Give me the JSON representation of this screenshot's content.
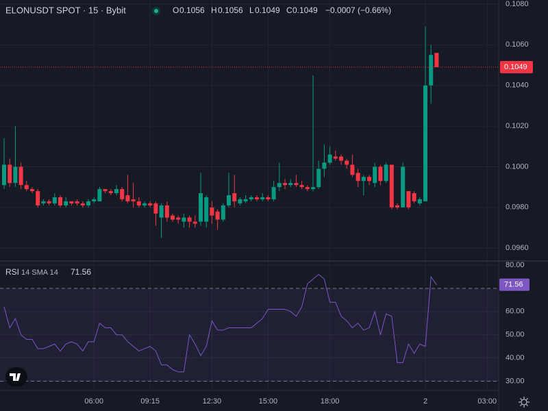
{
  "chart_data": [
    {
      "type": "candlestick",
      "title": "ELONUSDT SPOT · 15 · Bybit",
      "ohlc_labels": [
        "O",
        "H",
        "L",
        "C"
      ],
      "change": "−0.0007 (−0.66%)",
      "categories": [
        null,
        null,
        null,
        null,
        null,
        null,
        null,
        null,
        null,
        null,
        null,
        null,
        null,
        null,
        null,
        null,
        "06:00",
        null,
        null,
        null,
        null,
        null,
        null,
        null,
        null,
        null,
        "09:15",
        null,
        null,
        null,
        null,
        null,
        null,
        null,
        null,
        null,
        null,
        "12:30",
        null,
        null,
        null,
        null,
        null,
        null,
        null,
        null,
        null,
        "15:00",
        null,
        null,
        null,
        null,
        null,
        null,
        null,
        null,
        null,
        null,
        "18:00",
        null,
        null,
        null,
        null,
        null,
        null,
        null,
        null,
        null,
        null,
        null,
        null,
        null,
        null,
        null,
        null,
        "2",
        null,
        null,
        null,
        null,
        null,
        null,
        null,
        null,
        null,
        null,
        "03:00"
      ],
      "open": [
        0.0991,
        0.1001,
        0.0992,
        0.1,
        0.0991,
        0.0989,
        0.0988,
        0.0982,
        0.0983,
        0.0982,
        0.0985,
        0.0981,
        0.0983,
        0.0983,
        0.0982,
        0.0981,
        0.0983,
        0.0983,
        0.0989,
        0.0988,
        0.0987,
        0.0989,
        0.0986,
        0.0984,
        0.0983,
        0.0981,
        0.0982,
        0.0982,
        0.0975,
        0.0981,
        0.0976,
        0.0975,
        0.0973,
        0.0975,
        0.0973,
        0.0973,
        0.0973,
        0.098,
        0.0978,
        0.0974,
        0.0981,
        0.0987,
        0.0982,
        0.0983,
        0.0984,
        0.0985,
        0.0984,
        0.0985,
        0.0984,
        0.099,
        0.0992,
        0.0991,
        0.0992,
        0.0991,
        0.099,
        0.0989,
        0.099,
        0.0999,
        0.1002,
        0.1005,
        0.1005,
        0.1003,
        0.1001,
        0.0997,
        0.0993,
        0.0995,
        0.0992,
        0.1,
        0.0993,
        0.1001,
        0.0981,
        0.098,
        0.0988,
        0.0987,
        0.0982,
        0.0983,
        0.104,
        0.1056,
        null,
        null,
        null,
        null,
        null,
        null,
        null,
        null,
        null
      ],
      "high": [
        0.1014,
        0.1004,
        0.102,
        0.1002,
        0.0993,
        0.099,
        0.0989,
        0.0984,
        0.0984,
        0.0987,
        0.0986,
        0.0985,
        0.0983,
        0.0984,
        0.0983,
        0.0984,
        0.0985,
        0.099,
        0.0989,
        0.0989,
        0.0991,
        0.099,
        0.0996,
        0.0992,
        0.0985,
        0.0983,
        0.0983,
        0.0983,
        0.0982,
        0.0983,
        0.0977,
        0.0976,
        0.0977,
        0.0976,
        0.0976,
        0.0997,
        0.0986,
        0.0983,
        0.0979,
        0.0982,
        0.0997,
        0.0996,
        0.0985,
        0.0986,
        0.0986,
        0.0986,
        0.0987,
        0.0986,
        0.0993,
        0.1002,
        0.0994,
        0.0994,
        0.0996,
        0.0993,
        0.0991,
        0.1045,
        0.1003,
        0.1011,
        0.101,
        0.1008,
        0.1006,
        0.1004,
        0.1006,
        0.0999,
        0.0996,
        0.0996,
        0.1002,
        0.1001,
        0.1002,
        0.1001,
        0.0982,
        0.1002,
        0.0988,
        0.0988,
        0.0985,
        0.1069,
        0.106,
        0.1056,
        null,
        null,
        null,
        null,
        null,
        null,
        null,
        null,
        null
      ],
      "low": [
        0.0989,
        0.099,
        0.099,
        0.0989,
        0.0988,
        0.0987,
        0.098,
        0.0981,
        0.0981,
        0.0981,
        0.098,
        0.098,
        0.0981,
        0.0981,
        0.098,
        0.098,
        0.0982,
        0.0983,
        0.0987,
        0.0986,
        0.0986,
        0.0983,
        0.0982,
        0.098,
        0.098,
        0.098,
        0.098,
        0.0971,
        0.0965,
        0.0973,
        0.0973,
        0.0972,
        0.097,
        0.097,
        0.097,
        0.0971,
        0.097,
        0.0972,
        0.0969,
        0.0973,
        0.098,
        0.098,
        0.0981,
        0.0982,
        0.0983,
        0.0983,
        0.0983,
        0.0983,
        0.0983,
        0.0988,
        0.0989,
        0.099,
        0.099,
        0.0989,
        0.0988,
        0.0988,
        0.0989,
        0.0995,
        0.1001,
        0.1003,
        0.1001,
        0.0999,
        0.0995,
        0.099,
        0.0986,
        0.0991,
        0.099,
        0.0991,
        0.0992,
        0.0979,
        0.0979,
        0.098,
        0.0979,
        0.0982,
        0.0981,
        0.0983,
        0.1031,
        0.1049,
        null,
        null,
        null,
        null,
        null,
        null,
        null,
        null,
        null
      ],
      "close": [
        0.1001,
        0.0992,
        0.1,
        0.0991,
        0.0989,
        0.0988,
        0.0981,
        0.0983,
        0.0982,
        0.0985,
        0.0981,
        0.0983,
        0.0982,
        0.0982,
        0.0981,
        0.0983,
        0.0984,
        0.0989,
        0.0988,
        0.0987,
        0.0989,
        0.0984,
        0.0983,
        0.0983,
        0.0981,
        0.0982,
        0.0981,
        0.0977,
        0.0981,
        0.0975,
        0.0974,
        0.0974,
        0.0975,
        0.0973,
        0.0972,
        0.0987,
        0.0985,
        0.0976,
        0.0974,
        0.0981,
        0.0986,
        0.0983,
        0.0984,
        0.0984,
        0.0985,
        0.0984,
        0.0985,
        0.0984,
        0.099,
        0.0992,
        0.0991,
        0.0992,
        0.0991,
        0.099,
        0.0989,
        0.099,
        0.0999,
        0.1002,
        0.1006,
        0.1004,
        0.1003,
        0.1001,
        0.0996,
        0.0993,
        0.0995,
        0.0993,
        0.1,
        0.0993,
        0.1001,
        0.098,
        0.098,
        0.1,
        0.098,
        0.0983,
        0.0984,
        0.104,
        0.1055,
        0.1049,
        null,
        null,
        null,
        null,
        null,
        null,
        null,
        null,
        null
      ],
      "up_color": "#089981",
      "down_color": "#f23645",
      "ylim": [
        0.0954,
        0.1082
      ],
      "yticks": [
        {
          "value": 0.108,
          "label": "0.1080"
        },
        {
          "value": 0.106,
          "label": "0.1060"
        },
        {
          "value": 0.104,
          "label": "0.1040"
        },
        {
          "value": 0.102,
          "label": "0.1020"
        },
        {
          "value": 0.1,
          "label": "0.1000"
        },
        {
          "value": 0.098,
          "label": "0.0980"
        },
        {
          "value": 0.096,
          "label": "0.0960"
        }
      ],
      "grid": true
    },
    {
      "type": "line",
      "title": "RSI",
      "subtitle": "14 SMA 14",
      "series": [
        {
          "color": "#7e57c2",
          "values": [
            62,
            53,
            57,
            50,
            48,
            48,
            44,
            44,
            45,
            46,
            43,
            46,
            47,
            46,
            43,
            47,
            47,
            55,
            53,
            53,
            50,
            50,
            47,
            45,
            43,
            44,
            45,
            43,
            37,
            37,
            35,
            34,
            34,
            50,
            46,
            41,
            45,
            56,
            52,
            52,
            53,
            53,
            53,
            53,
            53,
            55,
            57,
            61,
            61,
            61,
            61,
            60,
            58,
            62,
            72,
            74,
            76,
            74,
            64,
            64,
            58,
            56,
            53,
            55,
            52,
            53,
            60,
            50,
            59,
            58,
            38,
            38,
            46,
            42,
            46,
            45,
            75,
            71.56,
            null,
            null,
            null,
            null,
            null,
            null,
            null,
            null,
            null
          ]
        }
      ],
      "bands": [
        30,
        70
      ],
      "ylim": [
        26,
        81.8
      ],
      "yticks": [
        {
          "value": 80,
          "label": "80.00"
        },
        {
          "value": 60,
          "label": "60.00"
        },
        {
          "value": 50,
          "label": "50.00"
        },
        {
          "value": 40,
          "label": "40.00"
        },
        {
          "value": 30,
          "label": "30.00"
        }
      ],
      "grid": true
    }
  ]
}
